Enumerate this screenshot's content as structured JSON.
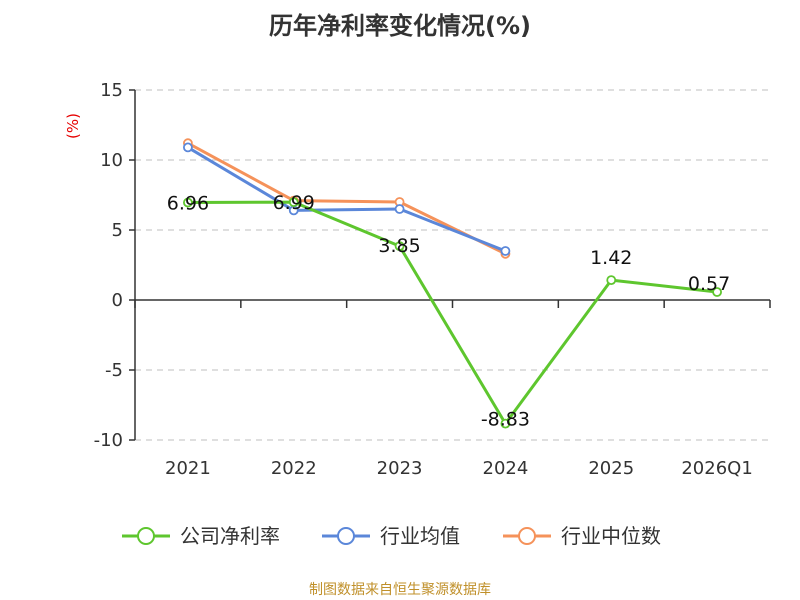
{
  "chart_data": {
    "type": "line",
    "title": "历年净利率变化情况(%)",
    "ylabel": "(%)",
    "xlabel": "",
    "categories": [
      "2021",
      "2022",
      "2023",
      "2024",
      "2025",
      "2026Q1"
    ],
    "ylim": [
      -10,
      15
    ],
    "yticks": [
      15,
      10,
      5,
      0,
      -5,
      -10
    ],
    "grid": true,
    "legend_position": "bottom",
    "series": [
      {
        "name": "公司净利率",
        "color": "#5ec62e",
        "values": [
          6.96,
          6.99,
          3.85,
          -8.83,
          1.42,
          0.57
        ],
        "labels": [
          "6.96",
          "6.99",
          "3.85",
          "-8.83",
          "1.42",
          "0.57"
        ]
      },
      {
        "name": "行业均值",
        "color": "#5b87d9",
        "values": [
          10.9,
          6.4,
          6.5,
          3.5,
          null,
          null
        ]
      },
      {
        "name": "行业中位数",
        "color": "#f5925a",
        "values": [
          11.2,
          7.1,
          7.0,
          3.3,
          null,
          null
        ]
      }
    ]
  },
  "footer": {
    "source": "制图数据来自恒生聚源数据库"
  }
}
